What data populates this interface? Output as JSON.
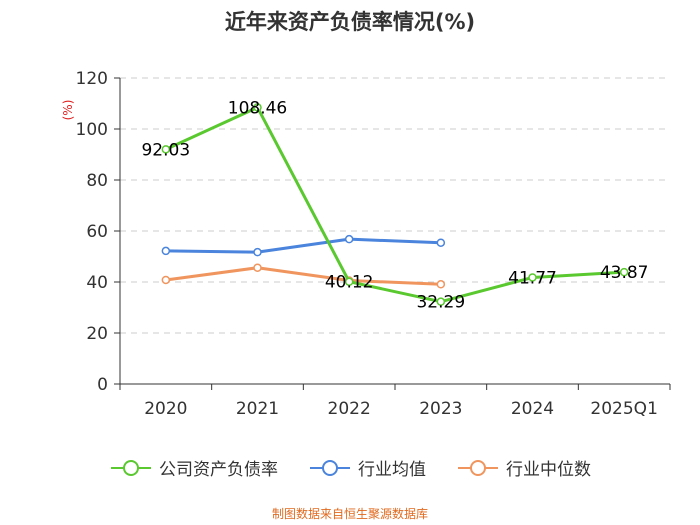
{
  "chart_data": {
    "type": "line",
    "title": "近年来资产负债率情况(%)",
    "ylabel": "(%)",
    "xlabel": "",
    "ylim": [
      0,
      120
    ],
    "yticks": [
      0,
      20,
      40,
      60,
      80,
      100,
      120
    ],
    "grid": "horizontal-dashed",
    "legend_position": "bottom",
    "categories": [
      "2020",
      "2021",
      "2022",
      "2023",
      "2024",
      "2025Q1"
    ],
    "series": [
      {
        "name": "公司资产负债率",
        "color": "#5ac82f",
        "values": [
          92.03,
          108.46,
          40.12,
          32.29,
          41.77,
          43.87
        ],
        "labels": [
          "92.03",
          "108.46",
          "40.12",
          "32.29",
          "41.77",
          "43.87"
        ]
      },
      {
        "name": "行业均值",
        "color": "#4a84dc",
        "values": [
          52.2,
          51.7,
          56.8,
          55.4,
          null,
          null
        ]
      },
      {
        "name": "行业中位数",
        "color": "#f0955e",
        "values": [
          40.8,
          45.6,
          40.6,
          39.1,
          null,
          null
        ]
      }
    ]
  },
  "source": "制图数据来自恒生聚源数据库"
}
